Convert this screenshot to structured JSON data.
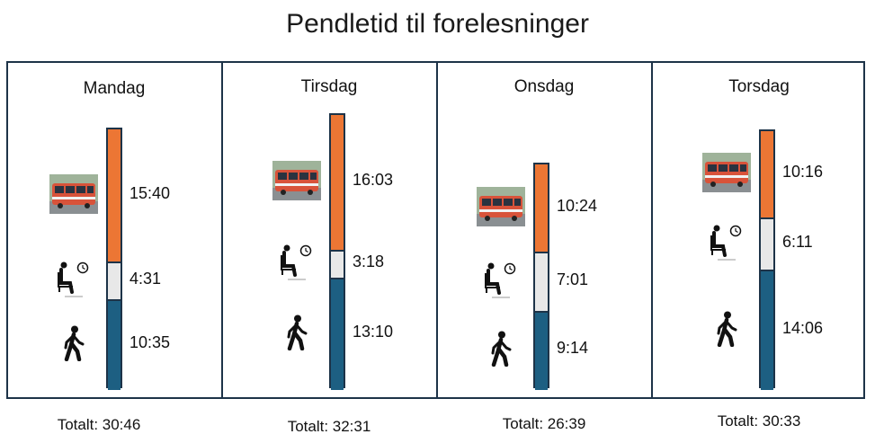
{
  "title": "Pendletid til forelesninger",
  "colors": {
    "bus": "#ec7634",
    "wait": "#e8e8e8",
    "walk": "#1d5f82",
    "border": "#1d3348"
  },
  "icons": {
    "bus": "bus-icon",
    "wait": "waiting-seat-clock-icon",
    "walk": "walking-person-icon"
  },
  "chart_data": {
    "type": "bar",
    "stacked": true,
    "title": "Pendletid til forelesninger",
    "categories": [
      "Mandag",
      "Tirsdag",
      "Onsdag",
      "Torsdag"
    ],
    "series": [
      {
        "values": [
          "15:40",
          "16:03",
          "10:24",
          "10:16"
        ]
      },
      {
        "values": [
          "4:31",
          "3:18",
          "7:01",
          "6:11"
        ]
      },
      {
        "values": [
          "10:35",
          "13:10",
          "9:14",
          "14:06"
        ]
      }
    ],
    "totals": [
      "Totalt: 30:46",
      "Totalt: 32:31",
      "Totalt: 26:39",
      "Totalt: 30:33"
    ]
  }
}
